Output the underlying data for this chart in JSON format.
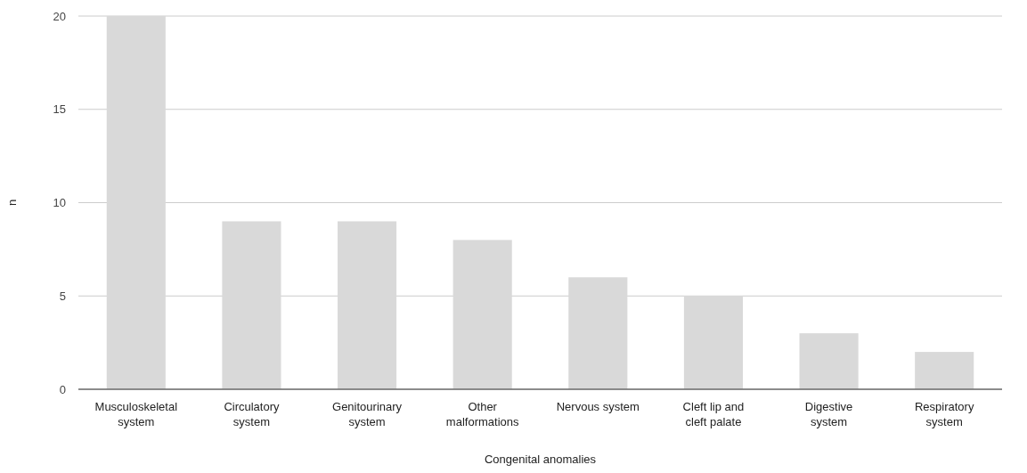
{
  "chart_data": {
    "type": "bar",
    "xlabel": "Congenital anomalies",
    "ylabel": "n",
    "categories": [
      "Musculoskeletal system",
      "Circulatory system",
      "Genitourinary system",
      "Other malformations",
      "Nervous system",
      "Cleft lip and cleft palate",
      "Digestive system",
      "Respiratory system"
    ],
    "values": [
      20,
      9,
      9,
      8,
      6,
      5,
      3,
      2
    ],
    "color": "#d9d9d9",
    "ylim": [
      0,
      20
    ],
    "yticks": [
      0,
      5,
      10,
      15,
      20
    ],
    "grid": "y"
  }
}
